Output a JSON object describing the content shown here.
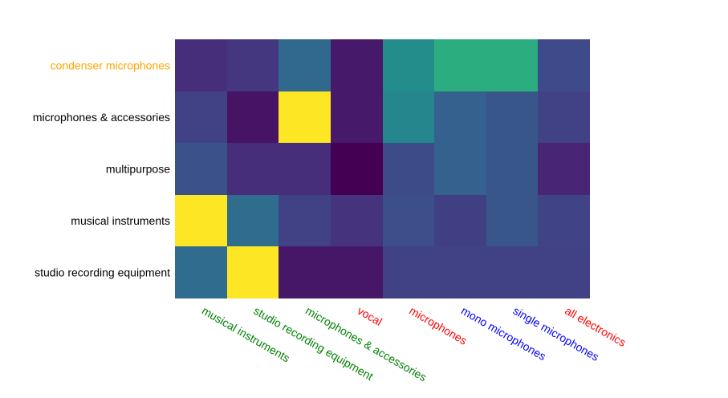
{
  "chart_data": {
    "type": "heatmap",
    "title": "",
    "xlabel": "",
    "ylabel": "",
    "x_categories": [
      "musical instruments",
      "studio recording equipment",
      "microphones & accessories",
      "vocal",
      "microphones",
      "mono microphones",
      "single microphones",
      "all electronics"
    ],
    "x_label_colors": [
      "#008000",
      "#008000",
      "#008000",
      "#ff0000",
      "#ff0000",
      "#0000ff",
      "#0000ff",
      "#ff0000"
    ],
    "y_categories": [
      "condenser microphones",
      "microphones & accessories",
      "multipurpose",
      "musical instruments",
      "studio recording equipment"
    ],
    "y_label_colors": [
      "#ffa500",
      "#000000",
      "#000000",
      "#000000",
      "#000000"
    ],
    "values": [
      [
        0.15,
        0.18,
        0.38,
        0.08,
        0.55,
        0.7,
        0.7,
        0.25
      ],
      [
        0.22,
        0.06,
        1.0,
        0.08,
        0.52,
        0.35,
        0.3,
        0.22
      ],
      [
        0.28,
        0.15,
        0.15,
        0.0,
        0.26,
        0.35,
        0.3,
        0.12
      ],
      [
        1.0,
        0.4,
        0.22,
        0.17,
        0.27,
        0.21,
        0.3,
        0.23
      ],
      [
        0.4,
        1.0,
        0.07,
        0.07,
        0.22,
        0.22,
        0.22,
        0.22
      ]
    ],
    "vmin": 0,
    "vmax": 1,
    "colorscale": "viridis",
    "colorbar": false
  }
}
